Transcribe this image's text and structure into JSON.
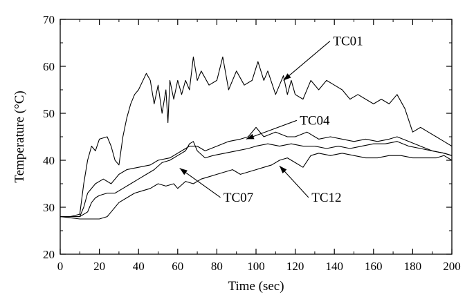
{
  "chart_data": {
    "type": "line",
    "xlabel": "Time (sec)",
    "ylabel": "Temperature (°C)",
    "xlim": [
      0,
      200
    ],
    "ylim": [
      20,
      70
    ],
    "xticks": [
      0,
      20,
      40,
      60,
      80,
      100,
      120,
      140,
      160,
      180,
      200
    ],
    "yticks": [
      20,
      30,
      40,
      50,
      60,
      70
    ],
    "grid": false,
    "series": [
      {
        "name": "TC01",
        "x": [
          0,
          5,
          10,
          12,
          14,
          16,
          18,
          20,
          24,
          26,
          28,
          30,
          32,
          34,
          36,
          38,
          40,
          44,
          46,
          48,
          50,
          52,
          54,
          55,
          56,
          58,
          60,
          62,
          64,
          66,
          68,
          70,
          72,
          76,
          80,
          83,
          86,
          90,
          94,
          98,
          101,
          104,
          106,
          110,
          114,
          116,
          118,
          120,
          124,
          128,
          132,
          136,
          140,
          144,
          148,
          152,
          156,
          160,
          164,
          168,
          172,
          176,
          180,
          184,
          188,
          192,
          196,
          200
        ],
        "y": [
          28,
          28,
          28.5,
          35,
          40,
          43,
          42,
          44.5,
          45,
          43,
          40,
          39,
          45,
          49,
          52,
          54,
          55,
          58.5,
          57,
          52,
          56,
          50,
          55,
          48,
          57,
          53,
          57,
          54,
          57,
          55,
          62,
          57,
          59,
          56,
          57,
          62,
          55,
          59,
          56,
          57,
          61,
          57,
          59,
          54,
          58,
          54,
          57,
          54,
          53,
          57,
          55,
          57,
          56,
          55,
          53,
          54,
          53,
          52,
          53,
          52,
          54,
          51,
          46,
          47,
          46,
          45,
          44,
          43
        ],
        "color": "#000000"
      },
      {
        "name": "TC04",
        "x": [
          0,
          10,
          12,
          14,
          18,
          22,
          26,
          30,
          34,
          40,
          46,
          50,
          56,
          62,
          66,
          70,
          74,
          80,
          86,
          92,
          96,
          100,
          104,
          110,
          116,
          120,
          126,
          132,
          138,
          144,
          150,
          156,
          162,
          168,
          172,
          178,
          184,
          190,
          196,
          200
        ],
        "y": [
          28,
          28,
          30,
          33,
          35,
          36,
          35,
          37,
          38,
          38.5,
          39,
          40,
          40.5,
          42,
          43,
          43,
          42,
          43,
          44,
          44.5,
          45,
          47,
          45,
          46,
          45,
          45,
          46,
          44.5,
          45,
          44.5,
          44,
          44.5,
          44,
          44.5,
          45,
          44,
          43,
          42,
          41.5,
          41
        ],
        "color": "#000000"
      },
      {
        "name": "TC07",
        "x": [
          0,
          10,
          14,
          16,
          18,
          20,
          24,
          28,
          32,
          36,
          40,
          44,
          48,
          52,
          56,
          60,
          64,
          66,
          68,
          70,
          74,
          78,
          84,
          90,
          96,
          100,
          106,
          112,
          118,
          124,
          130,
          136,
          142,
          148,
          154,
          160,
          166,
          172,
          178,
          184,
          190,
          196,
          200
        ],
        "y": [
          28,
          28,
          29,
          31,
          32,
          32.5,
          33,
          33,
          34,
          35,
          36,
          37,
          38,
          39.5,
          40,
          41,
          42,
          43.5,
          44,
          42,
          40.5,
          41,
          41.5,
          42,
          42.5,
          43,
          43.5,
          43,
          43.5,
          43,
          43,
          42.5,
          43,
          42.5,
          43,
          43.5,
          43.5,
          44,
          43,
          42.5,
          42,
          41.5,
          41
        ],
        "color": "#000000"
      },
      {
        "name": "TC12",
        "x": [
          0,
          10,
          20,
          24,
          26,
          30,
          34,
          38,
          42,
          46,
          50,
          54,
          58,
          60,
          64,
          68,
          72,
          76,
          80,
          84,
          88,
          92,
          96,
          100,
          104,
          108,
          112,
          116,
          120,
          124,
          128,
          132,
          138,
          144,
          150,
          156,
          162,
          168,
          174,
          180,
          186,
          192,
          196,
          200
        ],
        "y": [
          28,
          27.5,
          27.5,
          28,
          29,
          31,
          32,
          33,
          33.5,
          34,
          35,
          34.5,
          35,
          34,
          35.5,
          35,
          36,
          36.5,
          37,
          37.5,
          38,
          37,
          37.5,
          38,
          38.5,
          39,
          40,
          40.5,
          39.5,
          38.5,
          41,
          41.5,
          41,
          41.5,
          41,
          40.5,
          40.5,
          41,
          41,
          40.5,
          40.5,
          40.5,
          41,
          40
        ],
        "color": "#000000"
      }
    ],
    "annotations": [
      {
        "text": "TC01",
        "series": "TC01",
        "text_x": 147,
        "text_y": 64.5,
        "arrow_to_x": 114,
        "arrow_to_y": 57
      },
      {
        "text": "TC04",
        "series": "TC04",
        "text_x": 130,
        "text_y": 47.6,
        "arrow_to_x": 95,
        "arrow_to_y": 44.5
      },
      {
        "text": "TC07",
        "series": "TC07",
        "text_x": 91,
        "text_y": 31.2,
        "arrow_to_x": 61,
        "arrow_to_y": 38.3
      },
      {
        "text": "TC12",
        "series": "TC12",
        "text_x": 136,
        "text_y": 31.2,
        "arrow_to_x": 112,
        "arrow_to_y": 38.8
      }
    ]
  }
}
